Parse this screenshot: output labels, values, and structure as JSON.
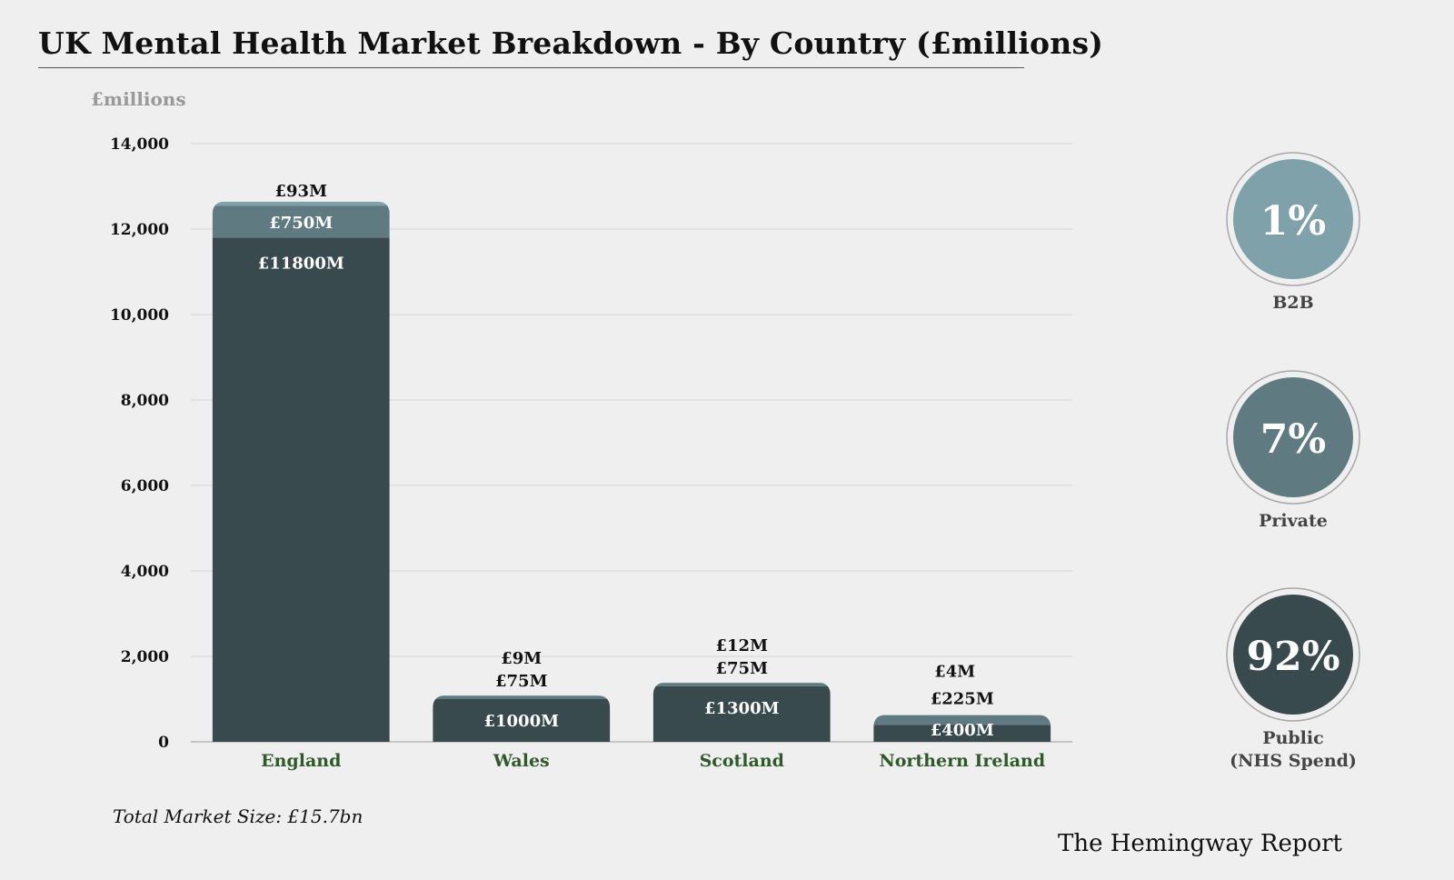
{
  "title": "UK Mental Health Market Breakdown - By Country (£millions)",
  "total_note": "Total Market Size: £15.7bn",
  "brand": "The Hemingway Report",
  "colors": {
    "public": "#394a4f",
    "private": "#5f7b81",
    "b2b": "#7ea1aa",
    "category_label": "#2e5a2a",
    "unit_label": "#999999",
    "grid": "#d6d6d6"
  },
  "chart_data": {
    "type": "bar",
    "stacked": true,
    "title": "UK Mental Health Market Breakdown - By Country (£millions)",
    "ylabel": "£millions",
    "xlabel": "",
    "ylim": [
      0,
      14000
    ],
    "yticks": [
      0,
      2000,
      4000,
      6000,
      8000,
      10000,
      12000,
      14000
    ],
    "ytick_labels": [
      "0",
      "2,000",
      "4,000",
      "6,000",
      "8,000",
      "10,000",
      "12,000",
      "14,000"
    ],
    "grid": true,
    "categories": [
      "England",
      "Wales",
      "Scotland",
      "Northern Ireland"
    ],
    "series": [
      {
        "key": "public",
        "values": [
          11800,
          1000,
          1300,
          400
        ],
        "labels": [
          "£11800M",
          "£1000M",
          "£1300M",
          "£400M"
        ]
      },
      {
        "key": "private",
        "values": [
          750,
          75,
          75,
          225
        ],
        "labels": [
          "£750M",
          "£75M",
          "£75M",
          "£225M"
        ]
      },
      {
        "key": "b2b",
        "values": [
          93,
          9,
          12,
          4
        ],
        "labels": [
          "£93M",
          "£9M",
          "£12M",
          "£4M"
        ]
      }
    ]
  },
  "legend": [
    {
      "key": "b2b",
      "percent": "1%",
      "label_lines": [
        "B2B"
      ],
      "color": "#7ea1aa"
    },
    {
      "key": "private",
      "percent": "7%",
      "label_lines": [
        "Private"
      ],
      "color": "#5f7b81"
    },
    {
      "key": "public",
      "percent": "92%",
      "label_lines": [
        "Public",
        "(NHS Spend)"
      ],
      "color": "#394a4f"
    }
  ]
}
